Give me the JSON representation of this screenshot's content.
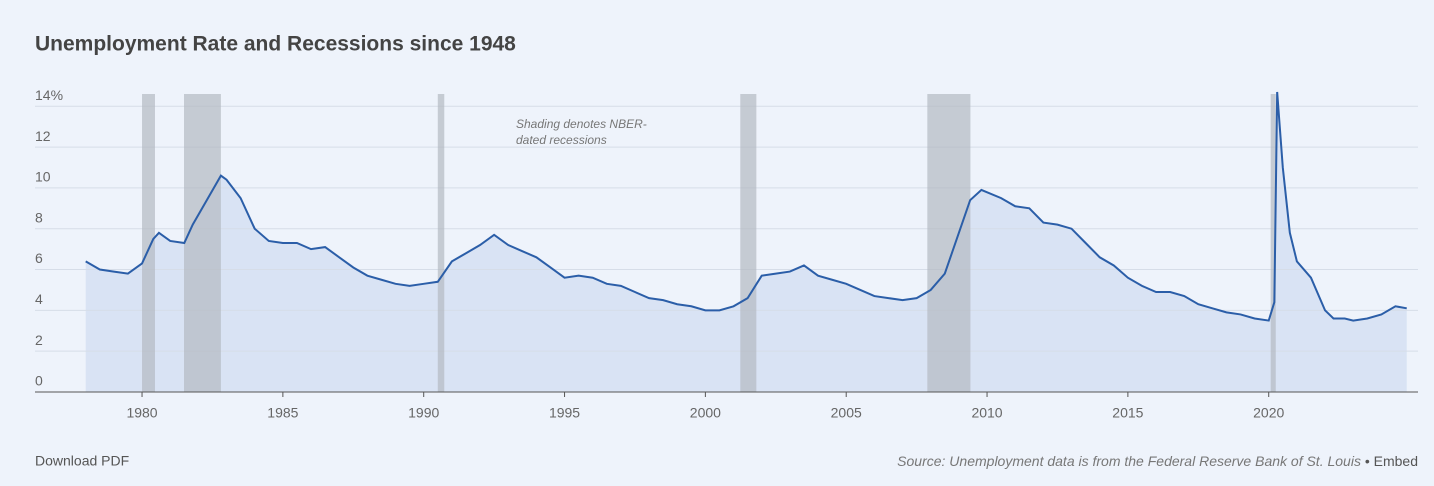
{
  "chart_data": {
    "type": "area",
    "title": "Unemployment Rate and Recessions since 1948",
    "annotation": [
      "Shading denotes NBER-",
      "dated recessions"
    ],
    "footer": {
      "download": "Download PDF",
      "source": "Source: Unemployment data is from the Federal Reserve Bank of St. Louis",
      "separator": "•",
      "embed": "Embed"
    },
    "color": "#2b5ea8",
    "fill": "#d9e3f4",
    "recession_color": "#b4b9c2",
    "grid": true,
    "xlim": [
      1976.2,
      2025.3
    ],
    "xticks": [
      1980,
      1985,
      1990,
      1995,
      2000,
      2005,
      2010,
      2015,
      2020
    ],
    "ylim": [
      0,
      14.6
    ],
    "yticks": [
      0,
      2,
      4,
      6,
      8,
      10,
      12,
      {
        "value": 14,
        "label": "14%"
      }
    ],
    "recessions": [
      [
        1980.0,
        1980.46
      ],
      [
        1981.49,
        1982.8
      ],
      [
        1990.5,
        1990.73
      ],
      [
        2001.24,
        2001.81
      ],
      [
        2007.88,
        2009.41
      ],
      [
        2020.07,
        2020.25
      ]
    ],
    "x": [
      1978.0,
      1978.5,
      1979.0,
      1979.5,
      1980.0,
      1980.4,
      1980.6,
      1981.0,
      1981.5,
      1981.8,
      1982.3,
      1982.8,
      1983.0,
      1983.5,
      1984.0,
      1984.5,
      1985.0,
      1985.5,
      1986.0,
      1986.5,
      1987.0,
      1987.5,
      1988.0,
      1988.5,
      1989.0,
      1989.5,
      1990.0,
      1990.5,
      1991.0,
      1991.5,
      1992.0,
      1992.5,
      1993.0,
      1993.5,
      1994.0,
      1994.5,
      1995.0,
      1995.5,
      1996.0,
      1996.5,
      1997.0,
      1997.5,
      1998.0,
      1998.5,
      1999.0,
      1999.5,
      2000.0,
      2000.5,
      2001.0,
      2001.5,
      2002.0,
      2002.5,
      2003.0,
      2003.5,
      2004.0,
      2004.5,
      2005.0,
      2005.5,
      2006.0,
      2006.5,
      2007.0,
      2007.5,
      2008.0,
      2008.5,
      2009.0,
      2009.4,
      2009.8,
      2010.5,
      2011.0,
      2011.5,
      2012.0,
      2012.5,
      2013.0,
      2013.5,
      2014.0,
      2014.5,
      2015.0,
      2015.5,
      2016.0,
      2016.5,
      2017.0,
      2017.5,
      2018.0,
      2018.5,
      2019.0,
      2019.5,
      2020.0,
      2020.2,
      2020.3,
      2020.5,
      2020.75,
      2021.0,
      2021.5,
      2022.0,
      2022.3,
      2022.7,
      2023.0,
      2023.5,
      2024.0,
      2024.5,
      2024.9
    ],
    "values": [
      6.4,
      6.0,
      5.9,
      5.8,
      6.3,
      7.5,
      7.8,
      7.4,
      7.3,
      8.2,
      9.4,
      10.6,
      10.4,
      9.5,
      8.0,
      7.4,
      7.3,
      7.3,
      7.0,
      7.1,
      6.6,
      6.1,
      5.7,
      5.5,
      5.3,
      5.2,
      5.3,
      5.4,
      6.4,
      6.8,
      7.2,
      7.7,
      7.2,
      6.9,
      6.6,
      6.1,
      5.6,
      5.7,
      5.6,
      5.3,
      5.2,
      4.9,
      4.6,
      4.5,
      4.3,
      4.2,
      4.0,
      4.0,
      4.2,
      4.6,
      5.7,
      5.8,
      5.9,
      6.2,
      5.7,
      5.5,
      5.3,
      5.0,
      4.7,
      4.6,
      4.5,
      4.6,
      5.0,
      5.8,
      7.8,
      9.4,
      9.9,
      9.5,
      9.1,
      9.0,
      8.3,
      8.2,
      8.0,
      7.3,
      6.6,
      6.2,
      5.6,
      5.2,
      4.9,
      4.9,
      4.7,
      4.3,
      4.1,
      3.9,
      3.8,
      3.6,
      3.5,
      4.4,
      14.7,
      11.0,
      7.8,
      6.4,
      5.6,
      4.0,
      3.6,
      3.6,
      3.5,
      3.6,
      3.8,
      4.2,
      4.1
    ]
  }
}
